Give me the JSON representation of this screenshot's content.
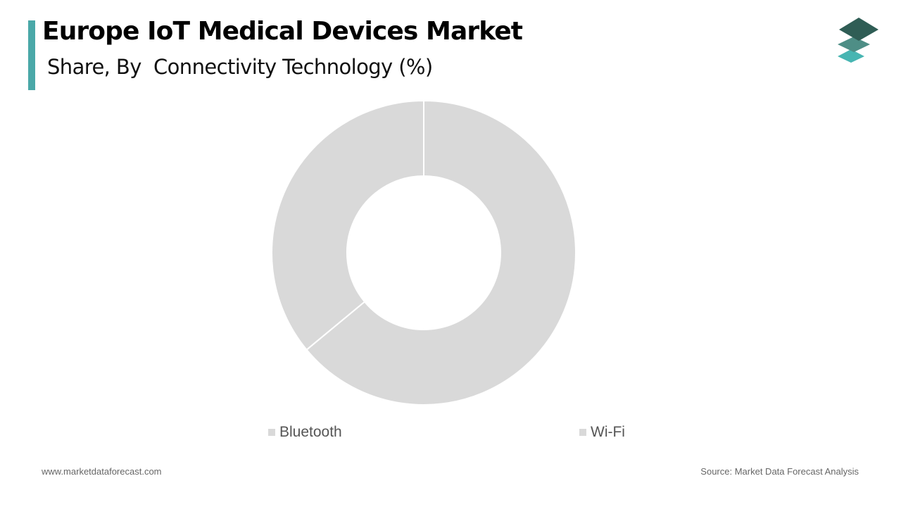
{
  "header": {
    "title": "Europe IoT Medical Devices Market",
    "subtitle": "Share, By  Connectivity Technology (%)",
    "accent_color": "#4aa8a8"
  },
  "logo": {
    "icon": "layered-stack-icon"
  },
  "chart_data": {
    "type": "pie",
    "variant": "donut",
    "categories": [
      "Bluetooth",
      "Wi-Fi"
    ],
    "values": [
      64,
      36
    ],
    "colors": [
      "#d9d9d9",
      "#d9d9d9"
    ],
    "legend_position": "bottom"
  },
  "footer": {
    "website": "www.marketdataforecast.com",
    "source": "Source: Market Data Forecast Analysis"
  }
}
